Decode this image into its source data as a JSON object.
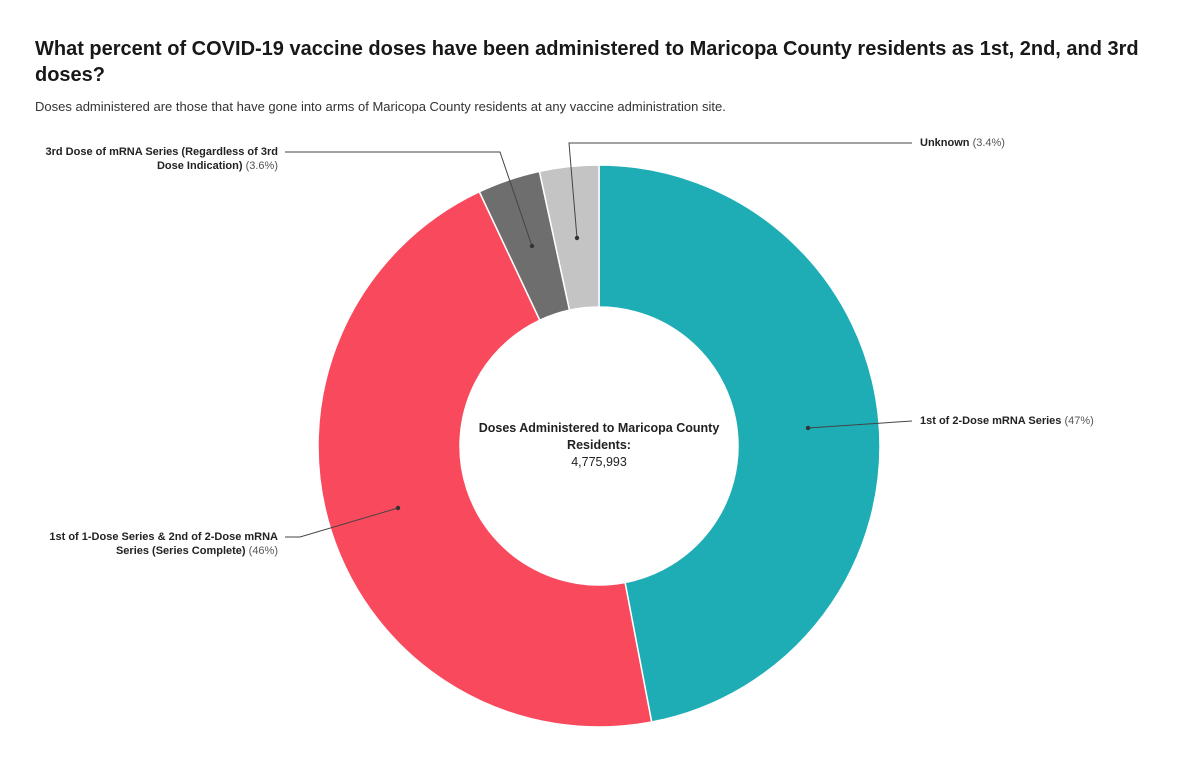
{
  "title": "What percent of COVID-19 vaccine doses have been administered to Maricopa County residents as 1st, 2nd, and 3rd doses?",
  "subtitle": "Doses administered are those that have gone into arms of Maricopa County residents at any vaccine administration site.",
  "chart_data": {
    "type": "pie",
    "variant": "donut",
    "center_label": "Doses Administered to Maricopa County Residents:",
    "center_value": "4,775,993",
    "slices": [
      {
        "label": "1st of 2-Dose mRNA Series",
        "pct_text": "(47%)",
        "value": 47,
        "color": "#1fadb5"
      },
      {
        "label": "1st of 1-Dose Series & 2nd of 2-Dose mRNA Series (Series Complete)",
        "pct_text": "(46%)",
        "value": 46,
        "color": "#f9495c"
      },
      {
        "label": "3rd Dose of mRNA Series (Regardless of 3rd Dose Indication)",
        "pct_text": "(3.6%)",
        "value": 3.6,
        "color": "#6e6e6e"
      },
      {
        "label": "Unknown",
        "pct_text": "(3.4%)",
        "value": 3.4,
        "color": "#c4c4c4"
      }
    ]
  }
}
